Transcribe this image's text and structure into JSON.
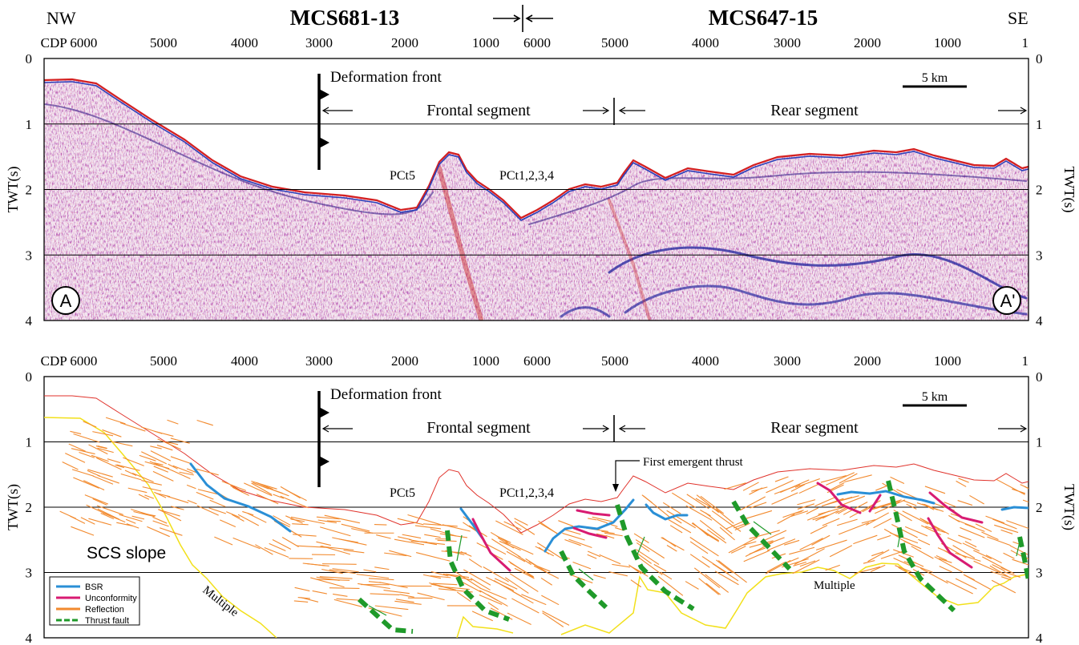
{
  "header": {
    "left_dir": "NW",
    "right_dir": "SE",
    "line_left": "MCS681-13",
    "line_right": "MCS647-15"
  },
  "cdp_prefix": "CDP",
  "cdp_ticks": [
    "6000",
    "5000",
    "4000",
    "3000",
    "2000",
    "1000",
    "6000",
    "5000",
    "4000",
    "3000",
    "2000",
    "1000",
    "1"
  ],
  "twt_axis_label": "TWT(s)",
  "twt_ticks": [
    "0",
    "1",
    "2",
    "3",
    "4"
  ],
  "upper": {
    "deformation_front": "Deformation front",
    "frontal_segment": "Frontal segment",
    "rear_segment": "Rear segment",
    "scale_label": "5 km",
    "pct5": "PCt5",
    "pct1234": "PCt1,2,3,4",
    "point_a": "A",
    "point_a_prime": "A'"
  },
  "lower": {
    "deformation_front": "Deformation front",
    "frontal_segment": "Frontal segment",
    "rear_segment": "Rear segment",
    "scale_label": "5 km",
    "pct5": "PCt5",
    "pct1234": "PCt1,2,3,4",
    "first_thrust": "First emergent thrust",
    "scs_slope": "SCS slope",
    "multiple_left": "Multiple",
    "multiple_right": "Multiple"
  },
  "legend": [
    {
      "label": "BSR",
      "color": "#2a8fd6",
      "style": "solid"
    },
    {
      "label": "Unconformity",
      "color": "#d81b72",
      "style": "solid"
    },
    {
      "label": "Reflection",
      "color": "#f28a2e",
      "style": "solid"
    },
    {
      "label": "Thrust fault",
      "color": "#1f9a2a",
      "style": "dashed"
    }
  ],
  "colors": {
    "seafloor": "#e0322b",
    "multiple": "#f2e01a",
    "seismic_main": "#7a1a7a",
    "seismic_red": "#d42020",
    "seismic_blue": "#2a3fb8"
  }
}
